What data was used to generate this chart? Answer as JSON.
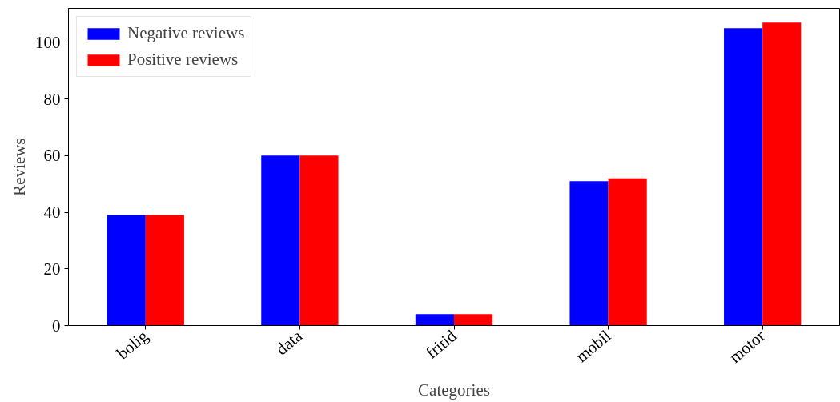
{
  "chart_data": {
    "type": "bar",
    "xlabel": "Categories",
    "ylabel": "Reviews",
    "categories": [
      "bolig",
      "data",
      "fritid",
      "mobil",
      "motor"
    ],
    "series": [
      {
        "name": "Negative reviews",
        "color": "#0000ff",
        "values": [
          39,
          60,
          4,
          51,
          105
        ]
      },
      {
        "name": "Positive reviews",
        "color": "#ff0000",
        "values": [
          39,
          60,
          4,
          52,
          107
        ]
      }
    ],
    "ylim": [
      0,
      112
    ],
    "yticks": [
      0,
      20,
      40,
      60,
      80,
      100
    ],
    "grid": false,
    "legend": "top left"
  }
}
